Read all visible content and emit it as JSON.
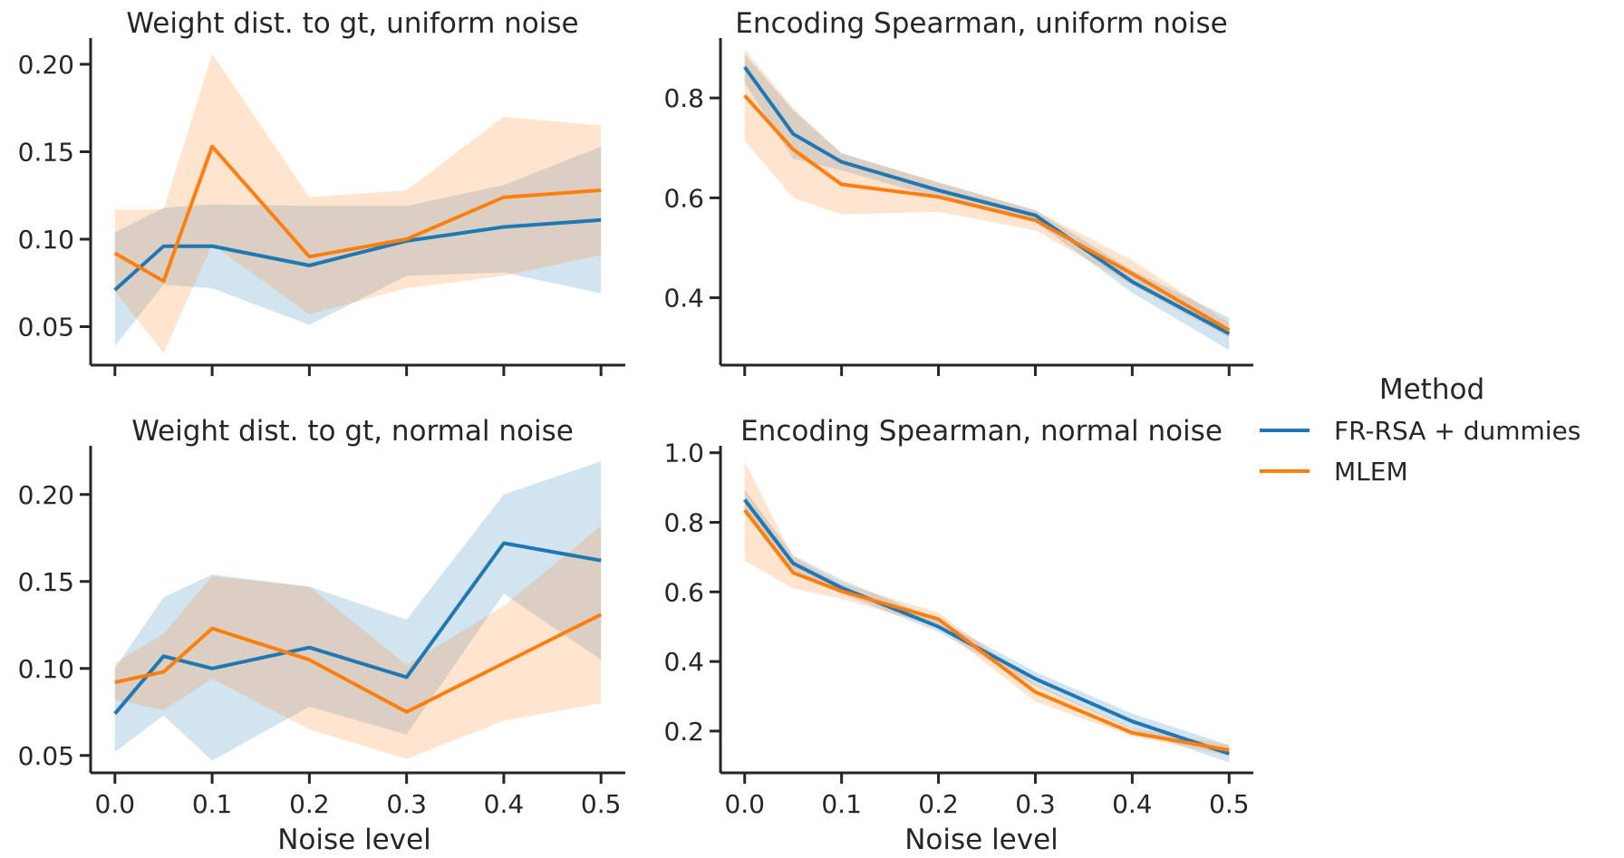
{
  "x_label": "Noise level",
  "legend": {
    "title": "Method",
    "entries": [
      {
        "label": "FR-RSA + dummies",
        "color": "#1f77b4"
      },
      {
        "label": "MLEM",
        "color": "#ff7f0e"
      }
    ]
  },
  "chart_data": [
    {
      "type": "line",
      "title": "Weight dist. to gt, uniform noise",
      "xlabel": "",
      "ylabel": "",
      "x": [
        0.0,
        0.05,
        0.1,
        0.2,
        0.3,
        0.4,
        0.5
      ],
      "xlim": [
        -0.025,
        0.525
      ],
      "ylim": [
        0.028,
        0.215
      ],
      "xticks": [
        0.0,
        0.1,
        0.2,
        0.3,
        0.4,
        0.5
      ],
      "xtick_labels": [],
      "yticks": [
        0.05,
        0.1,
        0.15,
        0.2
      ],
      "ytick_labels": [
        "0.05",
        "0.10",
        "0.15",
        "0.20"
      ],
      "series": [
        {
          "name": "FR-RSA + dummies",
          "color": "#1f77b4",
          "values": [
            0.071,
            0.096,
            0.096,
            0.085,
            0.099,
            0.107,
            0.111
          ],
          "lower": [
            0.039,
            0.074,
            0.072,
            0.051,
            0.079,
            0.081,
            0.069
          ],
          "upper": [
            0.104,
            0.118,
            0.12,
            0.119,
            0.119,
            0.131,
            0.153
          ]
        },
        {
          "name": "MLEM",
          "color": "#ff7f0e",
          "values": [
            0.092,
            0.076,
            0.153,
            0.09,
            0.1,
            0.124,
            0.128
          ],
          "lower": [
            0.07,
            0.035,
            0.097,
            0.057,
            0.072,
            0.079,
            0.091
          ],
          "upper": [
            0.117,
            0.117,
            0.206,
            0.124,
            0.128,
            0.17,
            0.165
          ]
        }
      ]
    },
    {
      "type": "line",
      "title": "Encoding Spearman, uniform noise",
      "xlabel": "",
      "ylabel": "",
      "x": [
        0.0,
        0.05,
        0.1,
        0.2,
        0.3,
        0.4,
        0.5
      ],
      "xlim": [
        -0.025,
        0.525
      ],
      "ylim": [
        0.265,
        0.92
      ],
      "xticks": [
        0.0,
        0.1,
        0.2,
        0.3,
        0.4,
        0.5
      ],
      "xtick_labels": [],
      "yticks": [
        0.4,
        0.6,
        0.8
      ],
      "ytick_labels": [
        "0.4",
        "0.6",
        "0.8"
      ],
      "series": [
        {
          "name": "FR-RSA + dummies",
          "color": "#1f77b4",
          "values": [
            0.862,
            0.728,
            0.672,
            0.615,
            0.565,
            0.432,
            0.328
          ],
          "lower": [
            0.83,
            0.678,
            0.655,
            0.6,
            0.552,
            0.41,
            0.295
          ],
          "upper": [
            0.888,
            0.775,
            0.69,
            0.63,
            0.575,
            0.455,
            0.36
          ]
        },
        {
          "name": "MLEM",
          "color": "#ff7f0e",
          "values": [
            0.805,
            0.697,
            0.627,
            0.602,
            0.555,
            0.448,
            0.335
          ],
          "lower": [
            0.715,
            0.6,
            0.567,
            0.572,
            0.535,
            0.425,
            0.32
          ],
          "upper": [
            0.898,
            0.78,
            0.688,
            0.632,
            0.575,
            0.475,
            0.35
          ]
        }
      ]
    },
    {
      "type": "line",
      "title": "Weight dist. to gt, normal noise",
      "xlabel": "Noise level",
      "ylabel": "",
      "x": [
        0.0,
        0.05,
        0.1,
        0.2,
        0.3,
        0.4,
        0.5
      ],
      "xlim": [
        -0.025,
        0.525
      ],
      "ylim": [
        0.04,
        0.228
      ],
      "xticks": [
        0.0,
        0.1,
        0.2,
        0.3,
        0.4,
        0.5
      ],
      "xtick_labels": [
        "0.0",
        "0.1",
        "0.2",
        "0.3",
        "0.4",
        "0.5"
      ],
      "yticks": [
        0.05,
        0.1,
        0.15,
        0.2
      ],
      "ytick_labels": [
        "0.05",
        "0.10",
        "0.15",
        "0.20"
      ],
      "series": [
        {
          "name": "FR-RSA + dummies",
          "color": "#1f77b4",
          "values": [
            0.074,
            0.107,
            0.1,
            0.112,
            0.095,
            0.172,
            0.162
          ],
          "lower": [
            0.052,
            0.073,
            0.047,
            0.078,
            0.062,
            0.143,
            0.105
          ],
          "upper": [
            0.1,
            0.141,
            0.154,
            0.147,
            0.128,
            0.2,
            0.219
          ]
        },
        {
          "name": "MLEM",
          "color": "#ff7f0e",
          "values": [
            0.092,
            0.098,
            0.123,
            0.105,
            0.075,
            0.103,
            0.131
          ],
          "lower": [
            0.082,
            0.076,
            0.094,
            0.065,
            0.048,
            0.07,
            0.08
          ],
          "upper": [
            0.103,
            0.12,
            0.153,
            0.147,
            0.102,
            0.136,
            0.182
          ]
        }
      ]
    },
    {
      "type": "line",
      "title": "Encoding Spearman, normal noise",
      "xlabel": "Noise level",
      "ylabel": "",
      "x": [
        0.0,
        0.05,
        0.1,
        0.2,
        0.3,
        0.4,
        0.5
      ],
      "xlim": [
        -0.025,
        0.525
      ],
      "ylim": [
        0.08,
        1.02
      ],
      "xticks": [
        0.0,
        0.1,
        0.2,
        0.3,
        0.4,
        0.5
      ],
      "xtick_labels": [
        "0.0",
        "0.1",
        "0.2",
        "0.3",
        "0.4",
        "0.5"
      ],
      "yticks": [
        0.2,
        0.4,
        0.6,
        0.8,
        1.0
      ],
      "ytick_labels": [
        "0.2",
        "0.4",
        "0.6",
        "0.8",
        "1.0"
      ],
      "series": [
        {
          "name": "FR-RSA + dummies",
          "color": "#1f77b4",
          "values": [
            0.865,
            0.682,
            0.612,
            0.5,
            0.35,
            0.228,
            0.135
          ],
          "lower": [
            0.83,
            0.66,
            0.595,
            0.485,
            0.33,
            0.205,
            0.11
          ],
          "upper": [
            0.895,
            0.705,
            0.635,
            0.52,
            0.37,
            0.25,
            0.16
          ]
        },
        {
          "name": "MLEM",
          "color": "#ff7f0e",
          "values": [
            0.835,
            0.655,
            0.602,
            0.522,
            0.312,
            0.195,
            0.145
          ],
          "lower": [
            0.69,
            0.61,
            0.58,
            0.5,
            0.285,
            0.185,
            0.13
          ],
          "upper": [
            0.975,
            0.7,
            0.625,
            0.54,
            0.335,
            0.208,
            0.16
          ]
        }
      ]
    }
  ]
}
